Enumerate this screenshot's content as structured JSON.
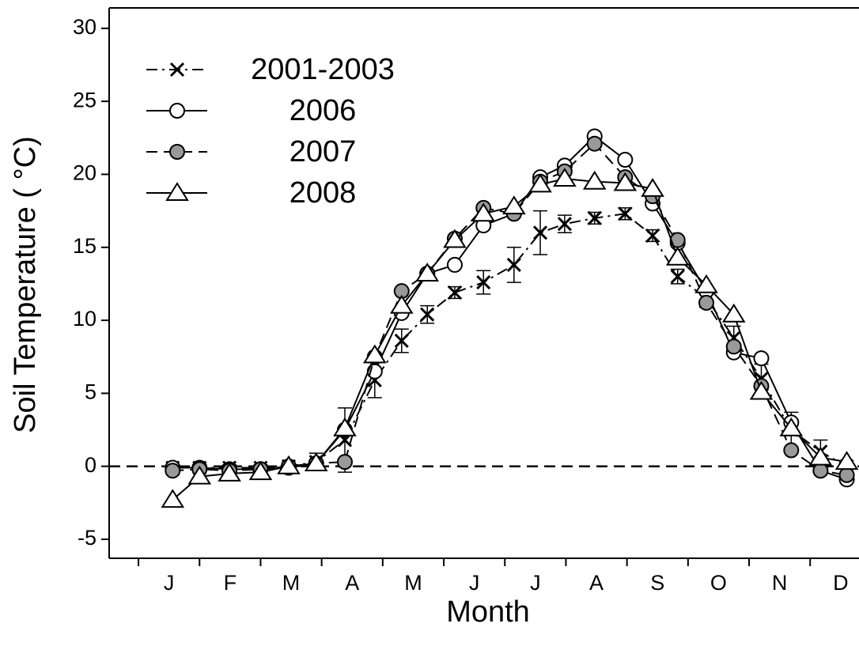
{
  "chart_data": {
    "type": "line",
    "x_label": "Month",
    "y_label": "Soil Temperature ( °C)",
    "categories": [
      "J",
      "F",
      "M",
      "A",
      "M",
      "J",
      "J",
      "A",
      "S",
      "O",
      "N",
      "D"
    ],
    "x": [
      0.56,
      1.0,
      1.49,
      2.0,
      2.46,
      2.91,
      3.38,
      3.87,
      4.31,
      4.73,
      5.18,
      5.65,
      6.15,
      6.58,
      6.98,
      7.47,
      7.97,
      8.42,
      8.83,
      9.3,
      9.75,
      10.2,
      10.69,
      11.17,
      11.6
    ],
    "xlim": [
      -0.48,
      11.8
    ],
    "xticks": [
      0,
      1,
      2,
      3,
      4,
      5,
      6,
      7,
      8,
      9,
      10,
      11
    ],
    "ylim": [
      -6.3,
      31.4
    ],
    "yticks": [
      -5,
      0,
      5,
      10,
      15,
      20,
      25,
      30
    ],
    "reference_line": {
      "y": 0,
      "style": "dashed"
    },
    "legend": "top-left",
    "series": [
      {
        "name": "2001-2003",
        "color": "#000000",
        "line_style": "dashdot",
        "marker": "x",
        "marker_fill": "none",
        "values": [
          -0.1,
          -0.1,
          -0.1,
          -0.1,
          0,
          0.3,
          1.8,
          5.9,
          8.6,
          10.4,
          11.9,
          12.6,
          13.8,
          16.0,
          16.6,
          17.0,
          17.3,
          15.8,
          13.0,
          11.5,
          8.8,
          6.0,
          2.5,
          1.0,
          0.0
        ],
        "errors": [
          0.2,
          0.2,
          0.2,
          0.2,
          0.2,
          0.6,
          2.2,
          1.2,
          0.8,
          0.6,
          0.4,
          0.8,
          1.2,
          1.5,
          0.6,
          0.4,
          0.4,
          0.4,
          0.5,
          0.6,
          0.8,
          1.0,
          1.2,
          0.8,
          0.2
        ]
      },
      {
        "name": "2006",
        "color": "#000000",
        "line_style": "solid",
        "marker": "circle",
        "marker_fill": "#ffffff",
        "values": [
          -0.1,
          -0.1,
          -0.2,
          -0.2,
          -0.1,
          0.2,
          2.5,
          6.5,
          10.5,
          13.2,
          13.8,
          16.5,
          17.3,
          19.8,
          20.6,
          22.6,
          21.0,
          18.0,
          15.3,
          12.0,
          7.8,
          7.4,
          3.0,
          -0.3,
          -0.9
        ]
      },
      {
        "name": "2007",
        "color": "#000000",
        "line_style": "dashed",
        "marker": "circle",
        "marker_fill": "#999999",
        "values": [
          -0.3,
          -0.2,
          -0.3,
          -0.2,
          0,
          0.2,
          0.3,
          7.5,
          12.0,
          13.2,
          15.6,
          17.7,
          17.3,
          19.5,
          20.2,
          22.1,
          19.8,
          18.5,
          15.5,
          11.2,
          8.2,
          5.5,
          1.1,
          -0.3,
          -0.6
        ]
      },
      {
        "name": "2008",
        "color": "#000000",
        "line_style": "solid",
        "marker": "triangle",
        "marker_fill": "#ffffff",
        "values": [
          -2.3,
          -0.7,
          -0.5,
          -0.4,
          0,
          0.2,
          2.6,
          7.6,
          11.0,
          13.2,
          15.5,
          17.3,
          17.8,
          19.3,
          19.7,
          19.5,
          19.4,
          19.0,
          14.3,
          12.4,
          10.4,
          5.1,
          2.6,
          0.6,
          0.3
        ]
      }
    ]
  }
}
